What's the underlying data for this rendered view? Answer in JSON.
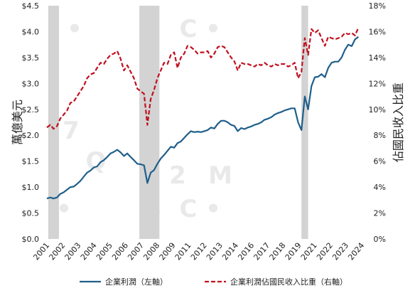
{
  "chart_data": {
    "type": "line",
    "title": "",
    "ylabel_left": "萬億美元",
    "ylabel_right": "佔國民收入比重",
    "ylim_left": [
      0,
      4.5
    ],
    "ylim_right": [
      0,
      18
    ],
    "yticks_left": [
      "$0.0",
      "$0.5",
      "$1.0",
      "$1.5",
      "$2.0",
      "$2.5",
      "$3.0",
      "$3.5",
      "$4.0",
      "$4.5"
    ],
    "yticks_right": [
      "0%",
      "2%",
      "4%",
      "6%",
      "8%",
      "10%",
      "12%",
      "14%",
      "16%",
      "18%"
    ],
    "xlim": [
      2001.0,
      2024.5
    ],
    "xticks": [
      "2001",
      "2002",
      "2003",
      "2004",
      "2005",
      "2006",
      "2007",
      "2008",
      "2009",
      "2011",
      "2012",
      "2013",
      "2014",
      "2016",
      "2017",
      "2018",
      "2019",
      "2021",
      "2022",
      "2023",
      "2024"
    ],
    "recessions": [
      [
        2001.1,
        2001.9
      ],
      [
        2007.9,
        2009.4
      ],
      [
        2020.0,
        2020.5
      ]
    ],
    "watermark_text": "• S C • 7 Q 2 M",
    "series": [
      {
        "name": "企業利潤（左軸）",
        "axis": "left",
        "color": "#1f5f8b",
        "style": "solid",
        "x": [
          2001.0,
          2001.25,
          2001.5,
          2001.75,
          2002.0,
          2002.25,
          2002.5,
          2002.75,
          2003.0,
          2003.25,
          2003.5,
          2003.75,
          2004.0,
          2004.25,
          2004.5,
          2004.75,
          2005.0,
          2005.25,
          2005.5,
          2005.75,
          2006.0,
          2006.25,
          2006.5,
          2006.75,
          2007.0,
          2007.25,
          2007.5,
          2007.75,
          2008.0,
          2008.25,
          2008.5,
          2008.75,
          2009.0,
          2009.25,
          2009.5,
          2009.75,
          2010.0,
          2010.25,
          2010.5,
          2010.75,
          2011.0,
          2011.25,
          2011.5,
          2011.75,
          2012.0,
          2012.25,
          2012.5,
          2012.75,
          2013.0,
          2013.25,
          2013.5,
          2013.75,
          2014.0,
          2014.25,
          2014.5,
          2014.75,
          2015.0,
          2015.25,
          2015.5,
          2015.75,
          2016.0,
          2016.25,
          2016.5,
          2016.75,
          2017.0,
          2017.25,
          2017.5,
          2017.75,
          2018.0,
          2018.25,
          2018.5,
          2018.75,
          2019.0,
          2019.25,
          2019.5,
          2019.75,
          2020.0,
          2020.25,
          2020.5,
          2020.75,
          2021.0,
          2021.25,
          2021.5,
          2021.75,
          2022.0,
          2022.25,
          2022.5,
          2022.75,
          2023.0,
          2023.25,
          2023.5,
          2023.75,
          2024.0,
          2024.25
        ],
        "values": [
          0.78,
          0.8,
          0.78,
          0.8,
          0.87,
          0.9,
          0.95,
          1.0,
          1.01,
          1.06,
          1.12,
          1.2,
          1.28,
          1.32,
          1.38,
          1.4,
          1.48,
          1.52,
          1.58,
          1.65,
          1.68,
          1.72,
          1.67,
          1.6,
          1.65,
          1.58,
          1.52,
          1.45,
          1.44,
          1.42,
          1.08,
          1.28,
          1.33,
          1.45,
          1.55,
          1.62,
          1.7,
          1.78,
          1.76,
          1.85,
          1.88,
          1.95,
          2.02,
          2.08,
          2.06,
          2.07,
          2.06,
          2.08,
          2.1,
          2.15,
          2.13,
          2.22,
          2.28,
          2.28,
          2.25,
          2.2,
          2.18,
          2.08,
          2.14,
          2.12,
          2.15,
          2.17,
          2.2,
          2.22,
          2.25,
          2.3,
          2.32,
          2.35,
          2.4,
          2.43,
          2.45,
          2.48,
          2.5,
          2.52,
          2.52,
          2.25,
          2.1,
          2.75,
          2.5,
          2.95,
          3.12,
          3.13,
          3.18,
          3.12,
          3.3,
          3.4,
          3.42,
          3.42,
          3.5,
          3.65,
          3.75,
          3.72,
          3.85,
          3.9
        ]
      },
      {
        "name": "企業利潤佔國民收入比重（右軸）",
        "axis": "right",
        "color": "#c0111f",
        "style": "dashed",
        "x": [
          2001.0,
          2001.25,
          2001.5,
          2001.75,
          2002.0,
          2002.25,
          2002.5,
          2002.75,
          2003.0,
          2003.25,
          2003.5,
          2003.75,
          2004.0,
          2004.25,
          2004.5,
          2004.75,
          2005.0,
          2005.25,
          2005.5,
          2005.75,
          2006.0,
          2006.25,
          2006.5,
          2006.75,
          2007.0,
          2007.25,
          2007.5,
          2007.75,
          2008.0,
          2008.25,
          2008.5,
          2008.75,
          2009.0,
          2009.25,
          2009.5,
          2009.75,
          2010.0,
          2010.25,
          2010.5,
          2010.75,
          2011.0,
          2011.25,
          2011.5,
          2011.75,
          2012.0,
          2012.25,
          2012.5,
          2012.75,
          2013.0,
          2013.25,
          2013.5,
          2013.75,
          2014.0,
          2014.25,
          2014.5,
          2014.75,
          2015.0,
          2015.25,
          2015.5,
          2015.75,
          2016.0,
          2016.25,
          2016.5,
          2016.75,
          2017.0,
          2017.25,
          2017.5,
          2017.75,
          2018.0,
          2018.25,
          2018.5,
          2018.75,
          2019.0,
          2019.25,
          2019.5,
          2019.75,
          2020.0,
          2020.25,
          2020.5,
          2020.75,
          2021.0,
          2021.25,
          2021.5,
          2021.75,
          2022.0,
          2022.25,
          2022.5,
          2022.75,
          2023.0,
          2023.25,
          2023.5,
          2023.75,
          2024.0,
          2024.25
        ],
        "values": [
          8.6,
          8.8,
          8.5,
          8.7,
          9.3,
          9.6,
          9.9,
          10.5,
          10.6,
          11.0,
          11.4,
          11.8,
          12.4,
          12.7,
          12.8,
          13.2,
          13.6,
          13.5,
          13.9,
          14.2,
          14.3,
          14.5,
          13.9,
          13.0,
          13.4,
          12.9,
          12.4,
          11.6,
          11.4,
          11.2,
          8.8,
          10.8,
          11.5,
          12.4,
          13.0,
          13.6,
          13.5,
          14.2,
          14.4,
          13.2,
          14.0,
          14.3,
          14.9,
          14.8,
          14.6,
          14.3,
          14.4,
          14.4,
          14.5,
          14.0,
          14.3,
          14.8,
          14.9,
          14.8,
          14.4,
          14.0,
          13.7,
          13.0,
          13.6,
          13.5,
          13.5,
          13.4,
          13.3,
          13.5,
          13.4,
          13.6,
          13.4,
          13.3,
          13.5,
          13.4,
          13.5,
          13.5,
          13.3,
          13.4,
          13.6,
          12.4,
          12.9,
          15.5,
          14.2,
          16.2,
          15.9,
          16.1,
          15.5,
          14.9,
          15.6,
          15.5,
          15.4,
          15.5,
          15.6,
          15.9,
          15.8,
          15.9,
          15.7,
          16.3
        ]
      }
    ],
    "legend": {
      "placement": "bottom",
      "items": [
        "企業利潤（左軸）",
        "企業利潤佔國民收入比重（右軸）"
      ]
    }
  }
}
